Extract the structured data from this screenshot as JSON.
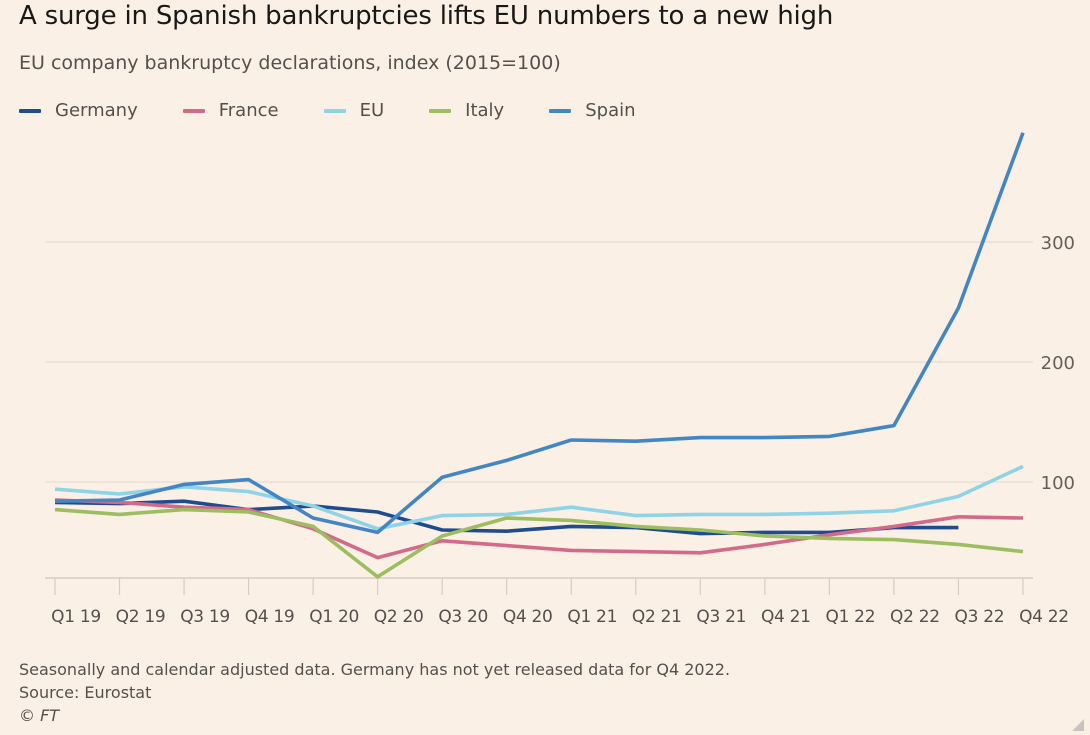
{
  "header": {
    "title": "A surge in Spanish bankruptcies lifts EU numbers to a new high",
    "subtitle": "EU company bankruptcy declarations, index (2015=100)"
  },
  "legend": [
    {
      "name": "Germany",
      "color": "#1f4c8f"
    },
    {
      "name": "France",
      "color": "#d36a8a"
    },
    {
      "name": "EU",
      "color": "#8fd3e6"
    },
    {
      "name": "Italy",
      "color": "#9cbd60"
    },
    {
      "name": "Spain",
      "color": "#4286c4"
    }
  ],
  "footer": {
    "note": "Seasonally and calendar adjusted data. Germany has not yet released data for Q4 2022.",
    "source": "Source: Eurostat",
    "copyright": "© FT"
  },
  "chart_data": {
    "type": "line",
    "title": "A surge in Spanish bankruptcies lifts EU numbers to a new high",
    "subtitle": "EU company bankruptcy declarations, index (2015=100)",
    "xlabel": "",
    "ylabel": "",
    "categories": [
      "Q1 19",
      "Q2 19",
      "Q3 19",
      "Q4 19",
      "Q1 20",
      "Q2 20",
      "Q3 20",
      "Q4 20",
      "Q1 21",
      "Q2 21",
      "Q3 21",
      "Q4 21",
      "Q1 22",
      "Q2 22",
      "Q3 22",
      "Q4 22"
    ],
    "ylim": [
      20,
      395
    ],
    "yticks": [
      100,
      200,
      300
    ],
    "yaxis_position": "right",
    "grid": true,
    "legend_position": "top-left",
    "series": [
      {
        "name": "Germany",
        "color": "#1f4c8f",
        "values": [
          83,
          82,
          84,
          77,
          80,
          75,
          60,
          59,
          63,
          62,
          57,
          58,
          58,
          62,
          62,
          null
        ]
      },
      {
        "name": "France",
        "color": "#d36a8a",
        "values": [
          85,
          83,
          79,
          77,
          61,
          37,
          51,
          47,
          43,
          42,
          41,
          48,
          56,
          63,
          71,
          70
        ]
      },
      {
        "name": "EU",
        "color": "#8fd3e6",
        "values": [
          94,
          90,
          96,
          92,
          80,
          61,
          72,
          73,
          79,
          72,
          73,
          73,
          74,
          76,
          88,
          113
        ]
      },
      {
        "name": "Italy",
        "color": "#9cbd60",
        "values": [
          77,
          73,
          77,
          75,
          63,
          21,
          55,
          70,
          68,
          63,
          60,
          55,
          53,
          52,
          48,
          42
        ]
      },
      {
        "name": "Spain",
        "color": "#4286c4",
        "values": [
          84,
          85,
          98,
          102,
          70,
          58,
          104,
          118,
          135,
          134,
          137,
          137,
          138,
          147,
          245,
          391
        ]
      }
    ]
  }
}
